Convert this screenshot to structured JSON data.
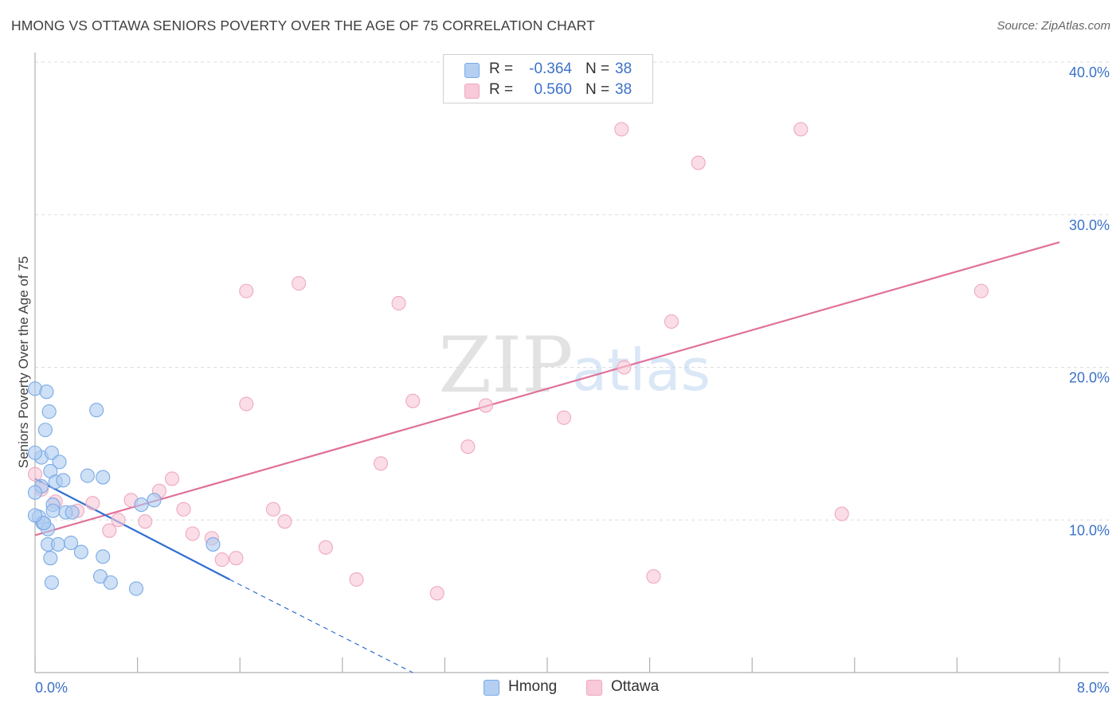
{
  "chart_data": {
    "type": "scatter",
    "title": "HMONG VS OTTAWA SENIORS POVERTY OVER THE AGE OF 75 CORRELATION CHART",
    "source": "Source: ZipAtlas.com",
    "xlabel": "",
    "ylabel": "Seniors Poverty Over the Age of 75",
    "xlim": [
      0,
      8
    ],
    "ylim": [
      0,
      40
    ],
    "x_tick_labels": {
      "left": "0.0%",
      "right": "8.0%"
    },
    "y_ticks": [
      {
        "value": 10,
        "label": "10.0%"
      },
      {
        "value": 20,
        "label": "20.0%"
      },
      {
        "value": 30,
        "label": "30.0%"
      },
      {
        "value": 40,
        "label": "40.0%"
      }
    ],
    "watermark": {
      "left": "ZIP",
      "right": "atlas"
    },
    "legend_stats": [
      {
        "series": "Hmong",
        "r_label": "R =",
        "r_value": "-0.364",
        "n_label": "N =",
        "n_value": "38"
      },
      {
        "series": "Ottawa",
        "r_label": "R =",
        "r_value": "0.560",
        "n_label": "N =",
        "n_value": "38"
      }
    ],
    "series": [
      {
        "name": "Hmong",
        "color": "#7aaae6",
        "fill": "#aecbf0",
        "line_color": "#2f6fd0",
        "trend": {
          "x_start": 0.0,
          "y_start": 12.7,
          "x_solid_end": 1.52,
          "y_solid_end": 6.1,
          "x_dash_end": 2.95,
          "y_dash_end": 0.0
        },
        "points": [
          [
            0.0,
            18.6
          ],
          [
            0.09,
            18.4
          ],
          [
            0.11,
            17.1
          ],
          [
            0.48,
            17.2
          ],
          [
            0.08,
            15.9
          ],
          [
            0.05,
            14.1
          ],
          [
            0.13,
            14.4
          ],
          [
            0.19,
            13.8
          ],
          [
            0.12,
            13.2
          ],
          [
            0.05,
            12.2
          ],
          [
            0.16,
            12.5
          ],
          [
            0.22,
            12.6
          ],
          [
            0.41,
            12.9
          ],
          [
            0.53,
            12.8
          ],
          [
            0.0,
            11.8
          ],
          [
            0.14,
            11.0
          ],
          [
            0.14,
            10.6
          ],
          [
            0.24,
            10.5
          ],
          [
            0.29,
            10.5
          ],
          [
            0.03,
            10.2
          ],
          [
            0.06,
            9.8
          ],
          [
            0.1,
            9.4
          ],
          [
            0.07,
            9.8
          ],
          [
            0.83,
            11.0
          ],
          [
            0.93,
            11.3
          ],
          [
            0.1,
            8.4
          ],
          [
            0.18,
            8.4
          ],
          [
            0.28,
            8.5
          ],
          [
            1.39,
            8.4
          ],
          [
            0.36,
            7.9
          ],
          [
            0.53,
            7.6
          ],
          [
            0.12,
            7.5
          ],
          [
            0.51,
            6.3
          ],
          [
            0.59,
            5.9
          ],
          [
            0.13,
            5.9
          ],
          [
            0.79,
            5.5
          ],
          [
            0.0,
            14.4
          ],
          [
            0.0,
            10.3
          ]
        ]
      },
      {
        "name": "Ottawa",
        "color": "#f0a8c0",
        "fill": "#f7c6d6",
        "line_color": "#e0709a",
        "trend": {
          "x_start": 0.0,
          "y_start": 9.0,
          "x_end": 8.0,
          "y_end": 28.2
        },
        "points": [
          [
            0.0,
            13.0
          ],
          [
            4.58,
            35.6
          ],
          [
            5.98,
            35.6
          ],
          [
            5.18,
            33.4
          ],
          [
            1.65,
            25.0
          ],
          [
            2.06,
            25.5
          ],
          [
            2.84,
            24.2
          ],
          [
            7.39,
            25.0
          ],
          [
            4.97,
            23.0
          ],
          [
            4.6,
            20.0
          ],
          [
            1.65,
            17.6
          ],
          [
            2.95,
            17.8
          ],
          [
            3.52,
            17.5
          ],
          [
            4.13,
            16.7
          ],
          [
            3.38,
            14.8
          ],
          [
            2.7,
            13.7
          ],
          [
            1.07,
            12.7
          ],
          [
            0.97,
            11.9
          ],
          [
            0.75,
            11.3
          ],
          [
            0.45,
            11.1
          ],
          [
            0.16,
            11.2
          ],
          [
            0.33,
            10.6
          ],
          [
            1.16,
            10.7
          ],
          [
            1.86,
            10.7
          ],
          [
            6.3,
            10.4
          ],
          [
            0.65,
            10.0
          ],
          [
            0.86,
            9.9
          ],
          [
            1.95,
            9.9
          ],
          [
            0.58,
            9.3
          ],
          [
            1.23,
            9.1
          ],
          [
            1.38,
            8.8
          ],
          [
            2.27,
            8.2
          ],
          [
            1.57,
            7.5
          ],
          [
            1.46,
            7.4
          ],
          [
            2.51,
            6.1
          ],
          [
            4.83,
            6.3
          ],
          [
            3.14,
            5.2
          ],
          [
            0.05,
            12.0
          ]
        ]
      }
    ]
  }
}
